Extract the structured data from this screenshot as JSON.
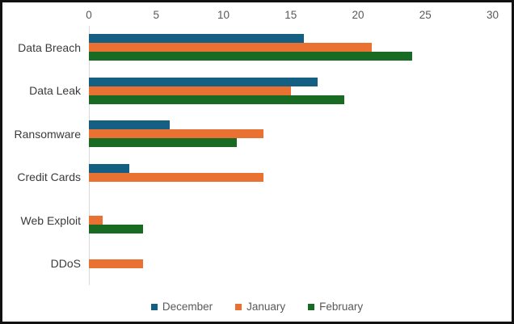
{
  "chart_data": {
    "type": "bar",
    "orientation": "horizontal",
    "title": "",
    "xlabel": "",
    "ylabel": "",
    "xlim": [
      0,
      30
    ],
    "x_ticks": [
      0,
      5,
      10,
      15,
      20,
      25,
      30
    ],
    "gridlines": false,
    "legend_position": "bottom",
    "categories": [
      "Data Breach",
      "Data Leak",
      "Ransomware",
      "Credit Cards",
      "Web Exploit",
      "DDoS"
    ],
    "series": [
      {
        "name": "December",
        "color": "#156082",
        "values": [
          16,
          17,
          6,
          3,
          0,
          0
        ]
      },
      {
        "name": "January",
        "color": "#E97132",
        "values": [
          21,
          15,
          13,
          13,
          1,
          4
        ]
      },
      {
        "name": "February",
        "color": "#196B24",
        "values": [
          24,
          19,
          11,
          0,
          4,
          0
        ]
      }
    ]
  },
  "colors": {
    "axis_line": "#d9d9d9",
    "tick_text": "#595959",
    "category_text": "#3b3b3b",
    "frame_border": "#111111",
    "background": "#ffffff"
  }
}
